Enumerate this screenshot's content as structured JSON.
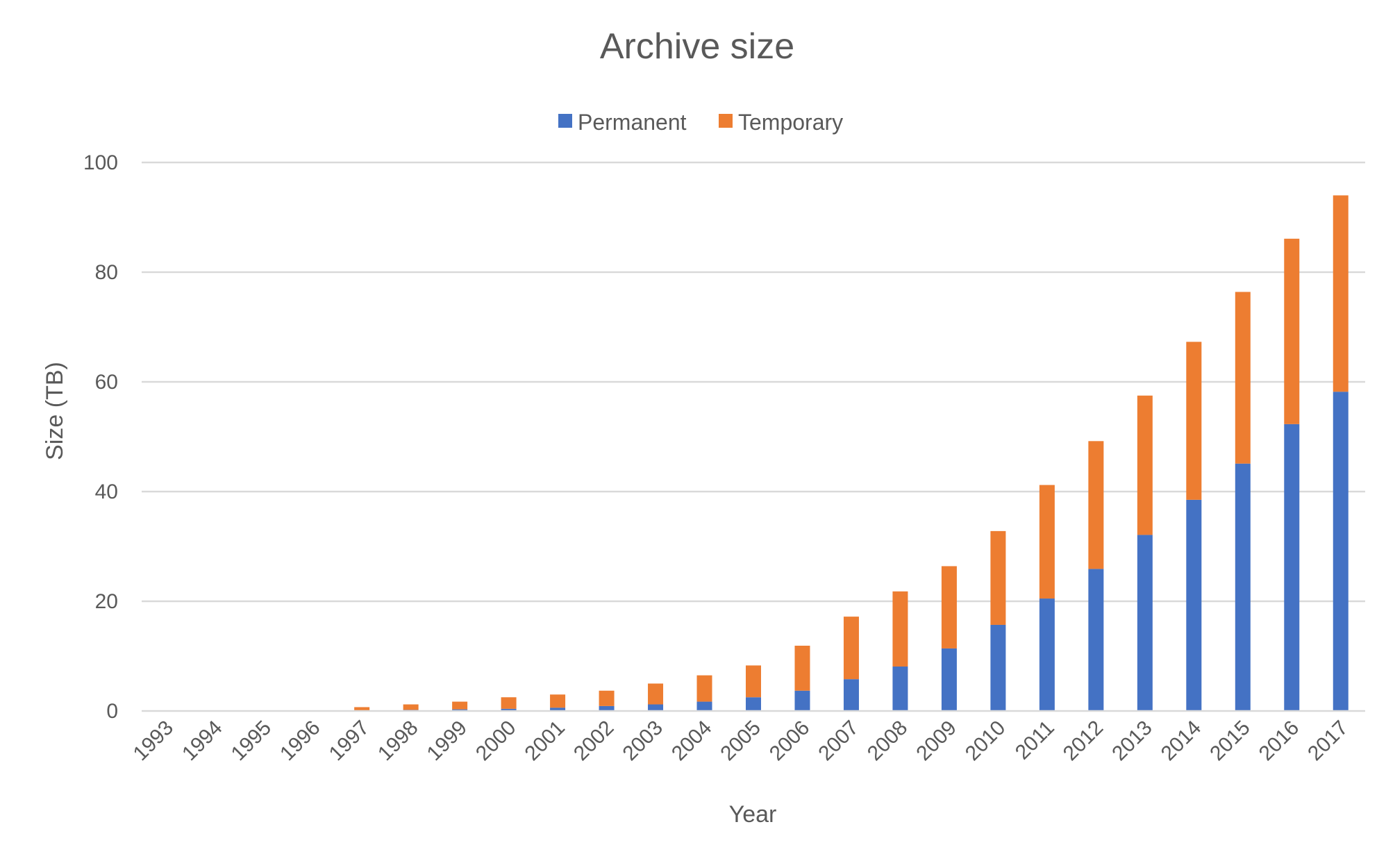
{
  "chart_data": {
    "type": "bar",
    "stacked": true,
    "title": "Archive size",
    "xlabel": "Year",
    "ylabel": "Size (TB)",
    "ylim": [
      0,
      100
    ],
    "yticks": [
      "0",
      "20",
      "40",
      "60",
      "80",
      "100"
    ],
    "grid": true,
    "legend_position": "top",
    "categories": [
      "1993",
      "1994",
      "1995",
      "1996",
      "1997",
      "1998",
      "1999",
      "2000",
      "2001",
      "2002",
      "2003",
      "2004",
      "2005",
      "2006",
      "2007",
      "2008",
      "2009",
      "2010",
      "2011",
      "2012",
      "2013",
      "2014",
      "2015",
      "2016",
      "2017"
    ],
    "series": [
      {
        "name": "Permanent",
        "color": "#4472C4",
        "values": [
          0,
          0,
          0,
          0,
          0.1,
          0.2,
          0.3,
          0.4,
          0.6,
          0.9,
          1.2,
          1.7,
          2.5,
          3.7,
          5.8,
          8.1,
          11.4,
          15.7,
          20.5,
          25.9,
          32.1,
          38.5,
          45.1,
          52.3,
          58.2
        ]
      },
      {
        "name": "Temporary",
        "color": "#ED7D31",
        "values": [
          0,
          0,
          0,
          0,
          0.6,
          1.0,
          1.4,
          2.1,
          2.4,
          2.8,
          3.8,
          4.8,
          5.8,
          8.2,
          11.4,
          13.7,
          15.0,
          17.1,
          20.7,
          23.3,
          25.4,
          28.8,
          31.3,
          33.8,
          35.8
        ]
      }
    ]
  }
}
